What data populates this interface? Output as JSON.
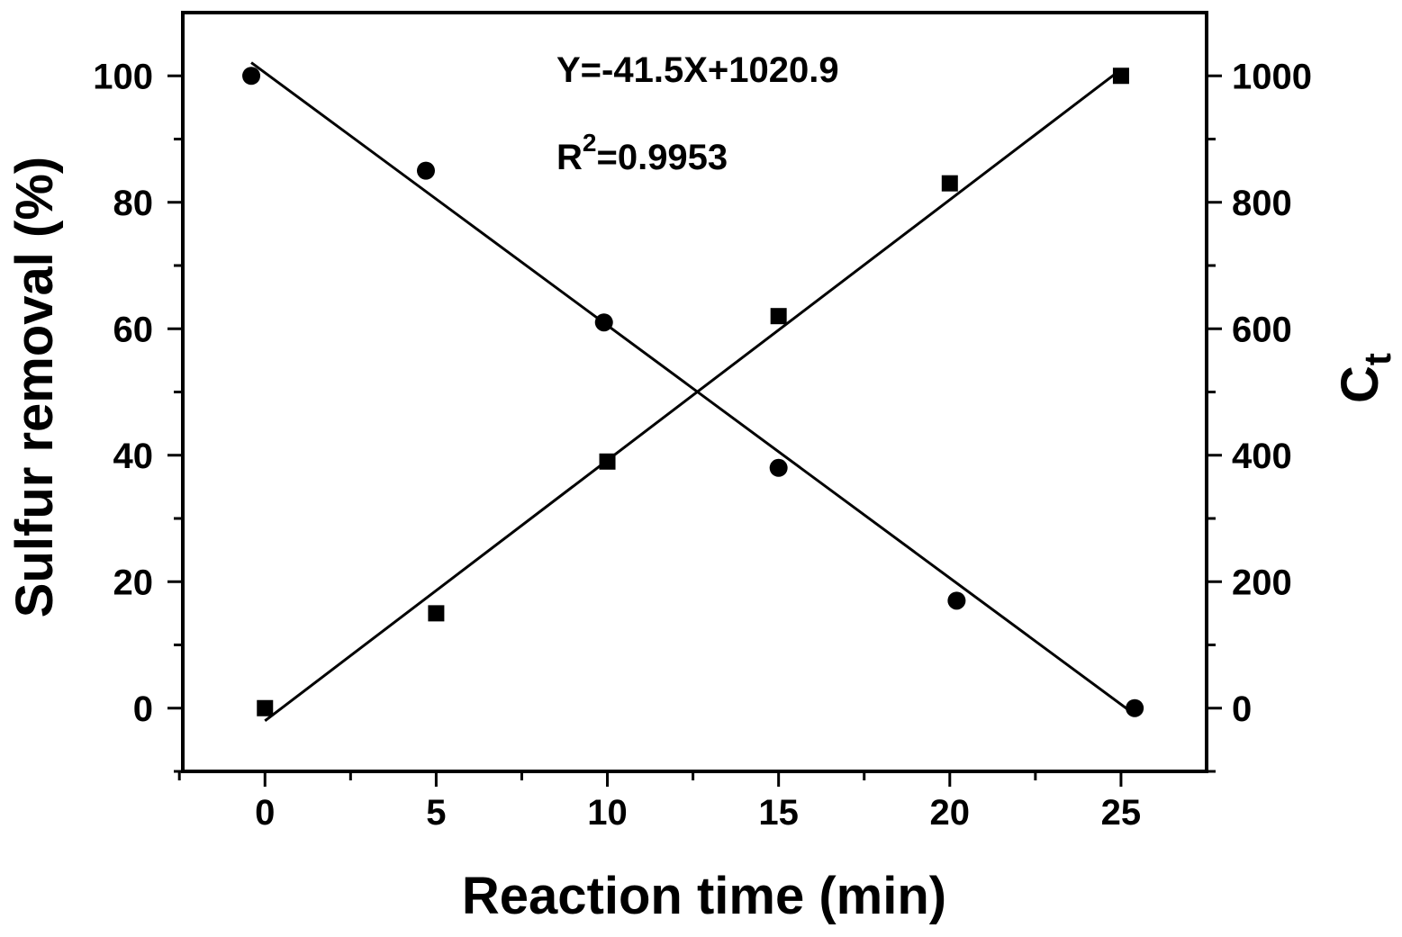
{
  "chart_data": {
    "type": "scatter",
    "xlabel": "Reaction time (min)",
    "ylabel_left": "Sulfur removal (%)",
    "ylabel_right_main": "C",
    "ylabel_right_sub": "t",
    "xlim": [
      -2.4,
      27.5
    ],
    "ylim_left": [
      -10,
      110
    ],
    "ylim_right": [
      -100,
      1100
    ],
    "x_ticks": [
      0,
      5,
      10,
      15,
      20,
      25
    ],
    "x_minor_ticks": [
      -2.5,
      2.5,
      7.5,
      12.5,
      17.5,
      22.5
    ],
    "y_left_ticks": [
      0,
      20,
      40,
      60,
      80,
      100
    ],
    "y_left_minor_ticks": [
      -10,
      10,
      30,
      50,
      70,
      90
    ],
    "y_right_ticks": [
      0,
      200,
      400,
      600,
      800,
      1000
    ],
    "y_right_minor_ticks": [
      -100,
      100,
      300,
      500,
      700,
      900
    ],
    "grid": false,
    "series": [
      {
        "axis": "right",
        "marker": "circle",
        "points": [
          {
            "x": -0.4,
            "y": 1000
          },
          {
            "x": 4.7,
            "y": 850
          },
          {
            "x": 9.9,
            "y": 610
          },
          {
            "x": 15.0,
            "y": 380
          },
          {
            "x": 20.2,
            "y": 170
          },
          {
            "x": 25.4,
            "y": 0
          }
        ],
        "fit": {
          "x_start": -0.4,
          "y_start": 1020.9,
          "x_end": 25.4,
          "y_end": -10
        }
      },
      {
        "axis": "left",
        "marker": "square",
        "points": [
          {
            "x": 0,
            "y": 0
          },
          {
            "x": 5,
            "y": 15
          },
          {
            "x": 10,
            "y": 39
          },
          {
            "x": 15,
            "y": 62
          },
          {
            "x": 20,
            "y": 83
          },
          {
            "x": 25,
            "y": 100
          }
        ],
        "fit": {
          "x_start": 0,
          "y_start": -2,
          "x_end": 25,
          "y_end": 101
        }
      }
    ],
    "annotations": {
      "equation": "Y=-41.5X+1020.9",
      "r2_prefix": "R",
      "r2_sup": "2",
      "r2_value": "=0.9953"
    }
  }
}
